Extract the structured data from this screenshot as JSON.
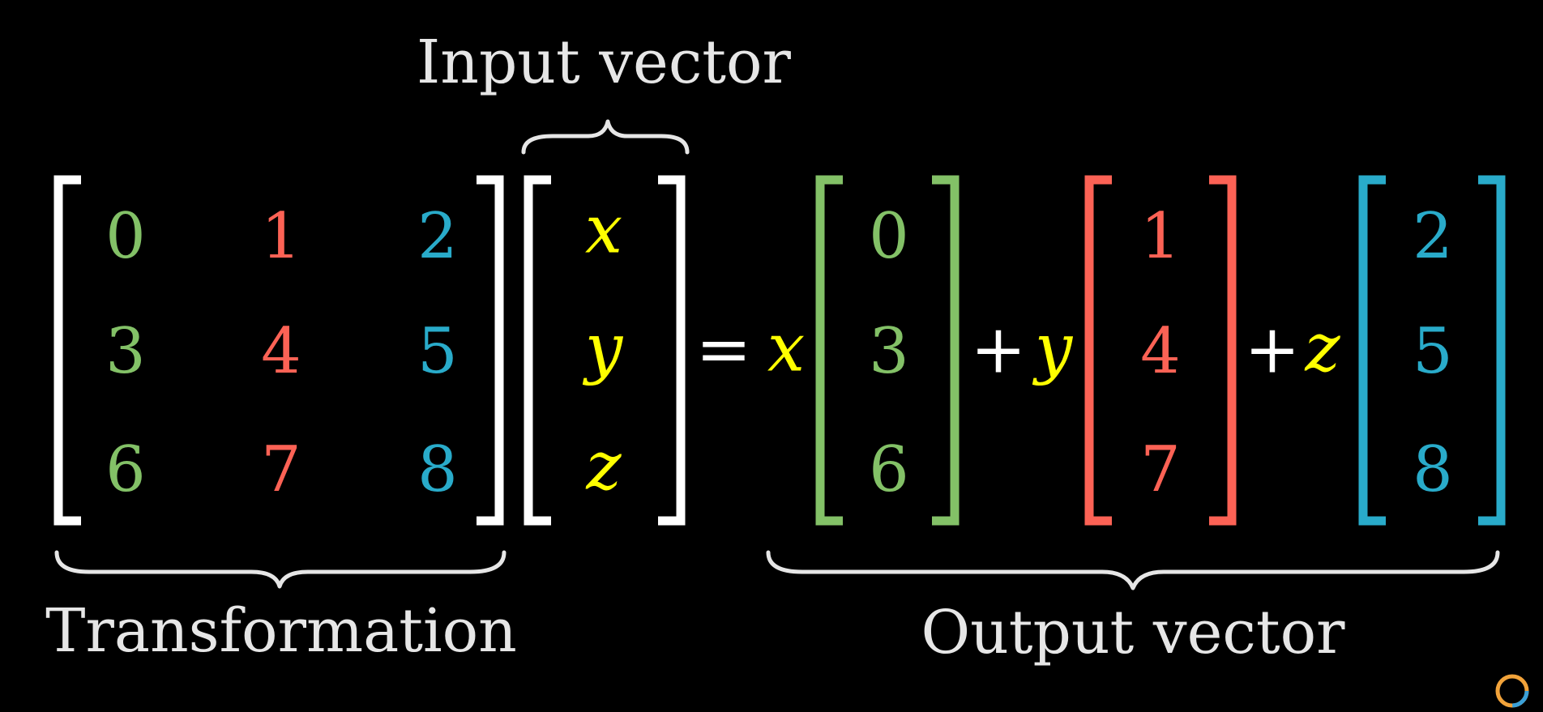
{
  "labels": {
    "input": "Input vector",
    "transformation": "Transformation",
    "output": "Output vector"
  },
  "matrix": [
    [
      "0",
      "1",
      "2"
    ],
    [
      "3",
      "4",
      "5"
    ],
    [
      "6",
      "7",
      "8"
    ]
  ],
  "input_vector": [
    "x",
    "y",
    "z"
  ],
  "operators": {
    "equals": "=",
    "plus": "+"
  },
  "output_terms": [
    {
      "coef": "x",
      "column": [
        "0",
        "3",
        "6"
      ],
      "color": "#83c167"
    },
    {
      "coef": "y",
      "column": [
        "1",
        "4",
        "7"
      ],
      "color": "#fc6255"
    },
    {
      "coef": "z",
      "column": [
        "2",
        "5",
        "8"
      ],
      "color": "#29abca"
    }
  ],
  "colors": {
    "background": "#000000",
    "bracket": "#ffffff",
    "label": "#e6e6e6",
    "variable": "#ffff00",
    "col1": "#83c167",
    "col2": "#fc6255",
    "col3": "#29abca"
  }
}
